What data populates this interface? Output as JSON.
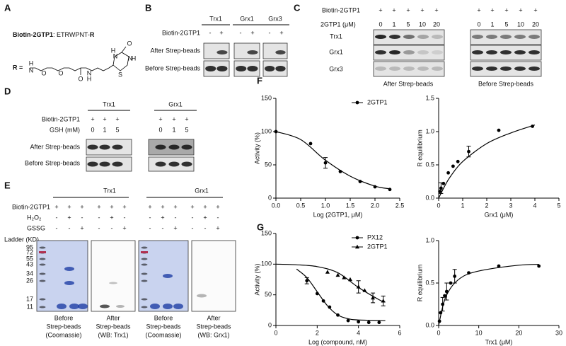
{
  "panels": {
    "A": {
      "label": "A",
      "peptide_name": "Biotin-2GTP1",
      "peptide_seq": ": ETRWPNT-",
      "peptide_r": "R",
      "r_label": "R =",
      "atoms": [
        "H",
        "N",
        "O",
        "O",
        "N",
        "H",
        "O",
        "H",
        "N",
        "O",
        "N",
        "H",
        "S"
      ]
    },
    "B": {
      "label": "B",
      "columns": [
        "Trx1",
        "Grx1",
        "Grx3"
      ],
      "row_label": "Biotin-2GTP1",
      "signs": [
        "-",
        "+",
        "-",
        "+",
        "-",
        "+"
      ],
      "rows": [
        "After Strep-beads",
        "Before Strep-beads"
      ]
    },
    "C": {
      "label": "C",
      "row1_label": "Biotin-2GTP1",
      "row1": [
        "+",
        "+",
        "+",
        "+",
        "+",
        "+",
        "+",
        "+",
        "+",
        "+"
      ],
      "row2_label": "2GTP1 (μM)",
      "row2": [
        "0",
        "1",
        "5",
        "10",
        "20",
        "0",
        "1",
        "5",
        "10",
        "20"
      ],
      "proteins": [
        "Trx1",
        "Grx1",
        "Grx3"
      ],
      "captions": [
        "After Strep-beads",
        "Before Strep-beads"
      ]
    },
    "D": {
      "label": "D",
      "columns": [
        "Trx1",
        "Grx1"
      ],
      "row1_label": "Biotin-2GTP1",
      "row1": [
        "+",
        "+",
        "+",
        "+",
        "+",
        "+"
      ],
      "row2_label": "GSH (mM)",
      "row2": [
        "0",
        "1",
        "5",
        "0",
        "1",
        "5"
      ],
      "rows": [
        "After Strep-beads",
        "Before Strep-beads"
      ]
    },
    "E": {
      "label": "E",
      "columns": [
        "Trx1",
        "Grx1"
      ],
      "row_labels": [
        "Biotin-2GTP1",
        "H₂O₂",
        "GSSG"
      ],
      "signs": [
        [
          "+",
          "+",
          "+",
          "+",
          "+",
          "+",
          "+",
          "+",
          "+",
          "+",
          "+",
          "+"
        ],
        [
          "-",
          "+",
          "-",
          "-",
          "+",
          "-",
          "-",
          "+",
          "-",
          "-",
          "+",
          "-"
        ],
        [
          "-",
          "-",
          "+",
          "-",
          "-",
          "+",
          "-",
          "-",
          "+",
          "-",
          "-",
          "+"
        ]
      ],
      "ladder_title": "Ladder (KD)",
      "ladder": [
        "95",
        "72",
        "55",
        "43",
        "34",
        "26",
        "17",
        "11"
      ],
      "captions": [
        [
          "Before",
          "Strep-beads",
          "(Coomassie)"
        ],
        [
          "After",
          "Strep-beads",
          "(WB: Trx1)"
        ],
        [
          "Before",
          "Strep-beads",
          "(Coomassie)"
        ],
        [
          "After",
          "Strep-beads",
          "(WB: Grx1)"
        ]
      ]
    },
    "F": {
      "label": "F"
    },
    "G": {
      "label": "G"
    }
  },
  "chart_data": [
    {
      "type": "scatter",
      "xlabel": "Log (2GTP1, μM)",
      "ylabel": "Activity (%)",
      "xlim": [
        0,
        2.5
      ],
      "xticks": [
        {
          "value": 0,
          "label": "0.0"
        },
        0.5,
        {
          "value": 1,
          "label": "1.0"
        },
        1.5,
        {
          "value": 2,
          "label": "2.0"
        },
        2.5
      ],
      "ylim": [
        0,
        150
      ],
      "yticks": [
        0,
        50,
        100,
        150
      ],
      "legend": "upper right",
      "series": [
        {
          "name": "2GTP1",
          "marker": "circle",
          "color": "#000000",
          "x": [
            0,
            0.7,
            1,
            1.3,
            1.7,
            2,
            2.3
          ],
          "values": [
            100,
            82,
            53,
            40,
            25,
            17,
            13
          ],
          "errors": [
            null,
            null,
            8,
            null,
            null,
            null,
            null
          ],
          "fit": {
            "x": [
              0,
              0.5,
              1,
              1.5,
              2,
              2.3
            ],
            "values": [
              100,
              88,
              57,
              33,
              18,
              14
            ]
          }
        }
      ]
    },
    {
      "type": "scatter",
      "xlabel": "Grx1 (μM)",
      "ylabel": "R equilibrium",
      "xlim": [
        0,
        5
      ],
      "xticks": [
        0,
        1,
        2,
        3,
        4,
        5
      ],
      "ylim": [
        0,
        1.5
      ],
      "yticks": [
        {
          "value": 0,
          "label": "0.0"
        },
        0.5,
        {
          "value": 1,
          "label": "1.0"
        },
        1.5
      ],
      "series": [
        {
          "marker": "circle",
          "color": "#000000",
          "x": [
            0.05,
            0.1,
            0.2,
            0.4,
            0.6,
            0.8,
            1.25,
            2.5,
            3.9
          ],
          "values": [
            0.1,
            0.15,
            0.22,
            0.38,
            0.48,
            0.55,
            0.7,
            1.02,
            1.08
          ],
          "errors": [
            null,
            0.08,
            null,
            null,
            null,
            null,
            0.08,
            null,
            null
          ],
          "fit": {
            "x": [
              0,
              0.25,
              0.5,
              1,
              2,
              3,
              4
            ],
            "values": [
              0,
              0.18,
              0.33,
              0.55,
              0.82,
              0.98,
              1.1
            ]
          }
        }
      ]
    },
    {
      "type": "scatter",
      "xlabel": "Log (compound, nM)",
      "ylabel": "Activity (%)",
      "xlim": [
        0,
        6
      ],
      "xticks": [
        0,
        2,
        4,
        6
      ],
      "ylim": [
        0,
        150
      ],
      "yticks": [
        0,
        50,
        100,
        150
      ],
      "legend": "upper right",
      "series": [
        {
          "name": "PX12",
          "marker": "circle",
          "color": "#000000",
          "x": [
            1.5,
            2,
            2.3,
            2.6,
            3,
            3.5,
            4,
            4.5,
            5
          ],
          "values": [
            73,
            52,
            40,
            30,
            17,
            8,
            6,
            5,
            5
          ],
          "errors": [
            5,
            null,
            null,
            null,
            null,
            null,
            null,
            null,
            null
          ],
          "fit": {
            "x": [
              1,
              1.5,
              2,
              2.5,
              3,
              3.5,
              4,
              5.3
            ],
            "values": [
              92,
              78,
              55,
              32,
              17,
              11,
              9,
              8
            ]
          }
        },
        {
          "name": "2GTP1",
          "marker": "triangle",
          "color": "#000000",
          "x": [
            2.5,
            3,
            3.3,
            3.6,
            4,
            4.3,
            4.7,
            5.2
          ],
          "values": [
            87,
            82,
            78,
            75,
            63,
            57,
            45,
            40
          ],
          "errors": [
            null,
            null,
            null,
            null,
            10,
            null,
            8,
            8
          ],
          "fit": {
            "x": [
              0,
              1,
              2,
              3,
              4,
              5,
              5.3
            ],
            "values": [
              100,
              99,
              96,
              86,
              62,
              42,
              38
            ]
          }
        }
      ]
    },
    {
      "type": "scatter",
      "xlabel": "Trx1 (μM)",
      "ylabel": "R equilibrium",
      "xlim": [
        0,
        30
      ],
      "xticks": [
        0,
        10,
        20,
        30
      ],
      "ylim": [
        0,
        1
      ],
      "yticks": [
        {
          "value": 0,
          "label": "0.0"
        },
        0.5,
        {
          "value": 1,
          "label": "1.0"
        }
      ],
      "series": [
        {
          "marker": "circle",
          "color": "#000000",
          "x": [
            0.2,
            0.5,
            1,
            1.5,
            2,
            3,
            4,
            7.5,
            15,
            25
          ],
          "values": [
            0.05,
            0.15,
            0.25,
            0.35,
            0.4,
            0.5,
            0.58,
            0.62,
            0.7,
            0.7
          ],
          "errors": [
            null,
            null,
            0.08,
            null,
            0.1,
            null,
            0.08,
            null,
            null,
            null
          ],
          "fit": {
            "x": [
              0,
              1,
              2,
              4,
              7,
              12,
              20,
              25
            ],
            "values": [
              0,
              0.22,
              0.36,
              0.5,
              0.6,
              0.66,
              0.71,
              0.72
            ]
          }
        }
      ]
    }
  ]
}
